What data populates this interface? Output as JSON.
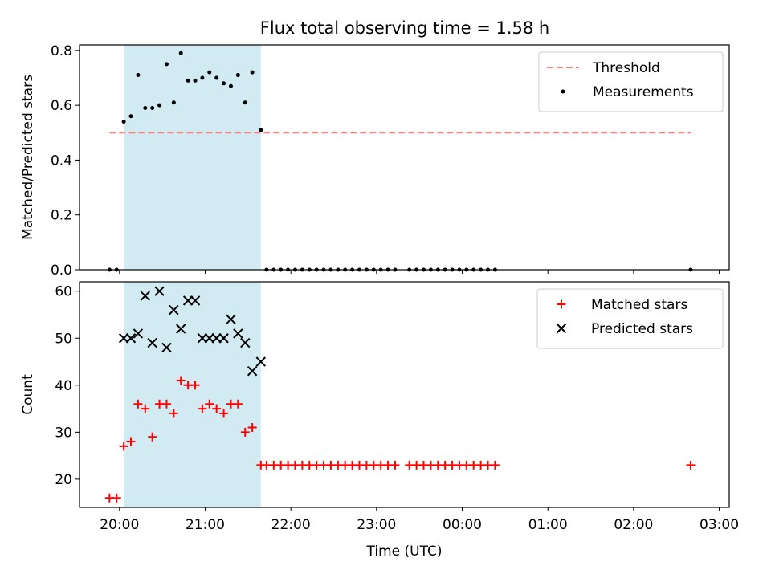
{
  "title": "Flux total observing time = 1.58 h",
  "chart_data": [
    {
      "type": "scatter",
      "ylabel": "Matched/Predicted stars",
      "xlabel": "",
      "x_axis": "time",
      "xlim": [
        "19:32",
        "03:07"
      ],
      "ylim": [
        0,
        0.82
      ],
      "yticks": [
        0.0,
        0.2,
        0.4,
        0.6,
        0.8
      ],
      "ytick_labels": [
        "0.0",
        "0.2",
        "0.4",
        "0.6",
        "0.8"
      ],
      "grid": false,
      "legend": "top-right",
      "observing_window": {
        "start": "20:03",
        "end": "21:39",
        "color": "#add8e6"
      },
      "threshold": {
        "name": "Threshold",
        "value": 0.5,
        "x_start": "19:53",
        "x_end": "02:40",
        "color": "#ff7f7f"
      },
      "series": [
        {
          "name": "Measurements",
          "color": "#000000",
          "x": [
            "19:53",
            "19:58",
            "20:03",
            "20:08",
            "20:13",
            "20:18",
            "20:23",
            "20:28",
            "20:33",
            "20:38",
            "20:43",
            "20:48",
            "20:53",
            "20:58",
            "21:03",
            "21:08",
            "21:13",
            "21:18",
            "21:23",
            "21:28",
            "21:33",
            "21:39",
            "21:43",
            "21:48",
            "21:53",
            "21:58",
            "22:03",
            "22:08",
            "22:13",
            "22:18",
            "22:23",
            "22:28",
            "22:33",
            "22:38",
            "22:43",
            "22:48",
            "22:53",
            "22:58",
            "23:03",
            "23:08",
            "23:13",
            "23:23",
            "23:28",
            "23:33",
            "23:38",
            "23:43",
            "23:48",
            "23:53",
            "23:58",
            "00:03",
            "00:08",
            "00:13",
            "00:18",
            "00:23",
            "02:40"
          ],
          "y": [
            0,
            0,
            0.54,
            0.56,
            0.71,
            0.59,
            0.59,
            0.6,
            0.75,
            0.61,
            0.79,
            0.69,
            0.69,
            0.7,
            0.72,
            0.7,
            0.68,
            0.67,
            0.71,
            0.61,
            0.72,
            0.51,
            0,
            0,
            0,
            0,
            0,
            0,
            0,
            0,
            0,
            0,
            0,
            0,
            0,
            0,
            0,
            0,
            0,
            0,
            0,
            0,
            0,
            0,
            0,
            0,
            0,
            0,
            0,
            0,
            0,
            0,
            0,
            0,
            0
          ]
        }
      ]
    },
    {
      "type": "scatter",
      "ylabel": "Count",
      "xlabel": "Time (UTC)",
      "x_axis": "time",
      "xlim": [
        "19:32",
        "03:07"
      ],
      "ylim": [
        14,
        62
      ],
      "yticks": [
        20,
        30,
        40,
        50,
        60
      ],
      "ytick_labels": [
        "20",
        "30",
        "40",
        "50",
        "60"
      ],
      "xticks": [
        "20:00",
        "21:00",
        "22:00",
        "23:00",
        "00:00",
        "01:00",
        "02:00",
        "03:00"
      ],
      "xtick_labels": [
        "20:00",
        "21:00",
        "22:00",
        "23:00",
        "00:00",
        "01:00",
        "02:00",
        "03:00"
      ],
      "grid": false,
      "legend": "top-right",
      "observing_window": {
        "start": "20:03",
        "end": "21:39",
        "color": "#add8e6"
      },
      "series": [
        {
          "name": "Matched stars",
          "marker": "plus",
          "color": "#ff0000",
          "x": [
            "19:53",
            "19:58",
            "20:03",
            "20:08",
            "20:13",
            "20:18",
            "20:23",
            "20:28",
            "20:33",
            "20:38",
            "20:43",
            "20:48",
            "20:53",
            "20:58",
            "21:03",
            "21:08",
            "21:13",
            "21:18",
            "21:23",
            "21:28",
            "21:33",
            "21:39",
            "21:43",
            "21:48",
            "21:53",
            "21:58",
            "22:03",
            "22:08",
            "22:13",
            "22:18",
            "22:23",
            "22:28",
            "22:33",
            "22:38",
            "22:43",
            "22:48",
            "22:53",
            "22:58",
            "23:03",
            "23:08",
            "23:13",
            "23:23",
            "23:28",
            "23:33",
            "23:38",
            "23:43",
            "23:48",
            "23:53",
            "23:58",
            "00:03",
            "00:08",
            "00:13",
            "00:18",
            "00:23",
            "02:40"
          ],
          "y": [
            16,
            16,
            27,
            28,
            36,
            35,
            29,
            36,
            36,
            34,
            41,
            40,
            40,
            35,
            36,
            35,
            34,
            36,
            36,
            30,
            31,
            23,
            23,
            23,
            23,
            23,
            23,
            23,
            23,
            23,
            23,
            23,
            23,
            23,
            23,
            23,
            23,
            23,
            23,
            23,
            23,
            23,
            23,
            23,
            23,
            23,
            23,
            23,
            23,
            23,
            23,
            23,
            23,
            23,
            23
          ]
        },
        {
          "name": "Predicted stars",
          "marker": "x",
          "color": "#000000",
          "x": [
            "20:03",
            "20:08",
            "20:13",
            "20:18",
            "20:23",
            "20:28",
            "20:33",
            "20:38",
            "20:43",
            "20:48",
            "20:53",
            "20:58",
            "21:03",
            "21:08",
            "21:13",
            "21:18",
            "21:23",
            "21:28",
            "21:33",
            "21:39"
          ],
          "y": [
            50,
            50,
            51,
            59,
            49,
            60,
            48,
            56,
            52,
            58,
            58,
            50,
            50,
            50,
            50,
            54,
            51,
            49,
            43,
            45
          ]
        }
      ]
    }
  ]
}
